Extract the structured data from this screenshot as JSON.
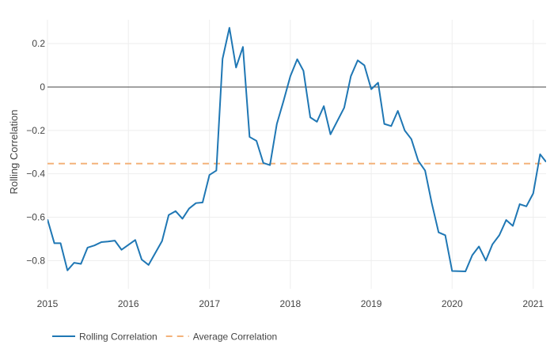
{
  "chart_data": {
    "type": "line",
    "ylabel": "Rolling Correlation",
    "xlabel": "",
    "title": "",
    "xlim": [
      "2015-01-01",
      "2021-02-28"
    ],
    "ylim": [
      -0.93,
      0.31
    ],
    "x_ticks": [
      "2015",
      "2016",
      "2017",
      "2018",
      "2019",
      "2020",
      "2021"
    ],
    "y_ticks": [
      -0.8,
      -0.6,
      -0.4,
      -0.2,
      0,
      0.2
    ],
    "y_tick_labels": [
      "−0.8",
      "−0.6",
      "−0.4",
      "−0.2",
      "0",
      "0.2"
    ],
    "grid": true,
    "zero_line": true,
    "legend_position": "bottom-left",
    "series": [
      {
        "name": "Rolling Correlation",
        "style": "solid",
        "color": "#1f77b4",
        "points": [
          [
            "2015-01-01",
            -0.61
          ],
          [
            "2015-02-01",
            -0.72
          ],
          [
            "2015-03-01",
            -0.72
          ],
          [
            "2015-04-01",
            -0.845
          ],
          [
            "2015-05-01",
            -0.81
          ],
          [
            "2015-06-01",
            -0.815
          ],
          [
            "2015-07-01",
            -0.74
          ],
          [
            "2015-08-01",
            -0.73
          ],
          [
            "2015-09-01",
            -0.715
          ],
          [
            "2015-10-01",
            -0.712
          ],
          [
            "2015-11-01",
            -0.708
          ],
          [
            "2015-12-01",
            -0.75
          ],
          [
            "2016-02-01",
            -0.705
          ],
          [
            "2016-03-01",
            -0.795
          ],
          [
            "2016-04-01",
            -0.82
          ],
          [
            "2016-06-01",
            -0.71
          ],
          [
            "2016-07-01",
            -0.59
          ],
          [
            "2016-08-01",
            -0.572
          ],
          [
            "2016-09-01",
            -0.607
          ],
          [
            "2016-10-01",
            -0.56
          ],
          [
            "2016-11-01",
            -0.535
          ],
          [
            "2016-12-01",
            -0.532
          ],
          [
            "2017-01-01",
            -0.405
          ],
          [
            "2017-02-01",
            -0.385
          ],
          [
            "2017-03-01",
            0.13
          ],
          [
            "2017-04-01",
            0.273
          ],
          [
            "2017-05-01",
            0.09
          ],
          [
            "2017-06-01",
            0.185
          ],
          [
            "2017-07-01",
            -0.23
          ],
          [
            "2017-08-01",
            -0.248
          ],
          [
            "2017-09-01",
            -0.35
          ],
          [
            "2017-10-01",
            -0.36
          ],
          [
            "2017-11-01",
            -0.17
          ],
          [
            "2017-12-01",
            -0.065
          ],
          [
            "2018-01-01",
            0.05
          ],
          [
            "2018-02-01",
            0.128
          ],
          [
            "2018-03-01",
            0.075
          ],
          [
            "2018-04-01",
            -0.14
          ],
          [
            "2018-05-01",
            -0.16
          ],
          [
            "2018-06-01",
            -0.088
          ],
          [
            "2018-07-01",
            -0.218
          ],
          [
            "2018-09-01",
            -0.095
          ],
          [
            "2018-10-01",
            0.05
          ],
          [
            "2018-11-01",
            0.123
          ],
          [
            "2018-12-01",
            0.1
          ],
          [
            "2019-01-01",
            -0.01
          ],
          [
            "2019-02-01",
            0.02
          ],
          [
            "2019-03-01",
            -0.17
          ],
          [
            "2019-04-01",
            -0.18
          ],
          [
            "2019-05-01",
            -0.11
          ],
          [
            "2019-06-01",
            -0.2
          ],
          [
            "2019-07-01",
            -0.24
          ],
          [
            "2019-08-01",
            -0.34
          ],
          [
            "2019-09-01",
            -0.385
          ],
          [
            "2019-10-01",
            -0.535
          ],
          [
            "2019-11-01",
            -0.67
          ],
          [
            "2019-12-01",
            -0.683
          ],
          [
            "2020-01-01",
            -0.848
          ],
          [
            "2020-03-01",
            -0.85
          ],
          [
            "2020-04-01",
            -0.775
          ],
          [
            "2020-05-01",
            -0.735
          ],
          [
            "2020-06-01",
            -0.8
          ],
          [
            "2020-07-01",
            -0.725
          ],
          [
            "2020-08-01",
            -0.683
          ],
          [
            "2020-09-01",
            -0.613
          ],
          [
            "2020-10-01",
            -0.64
          ],
          [
            "2020-11-01",
            -0.54
          ],
          [
            "2020-12-01",
            -0.55
          ],
          [
            "2021-01-01",
            -0.49
          ],
          [
            "2021-02-01",
            -0.31
          ],
          [
            "2021-02-28",
            -0.345
          ]
        ]
      },
      {
        "name": "Average Correlation",
        "style": "dashed",
        "color": "#f4b27a",
        "points": [
          [
            "2015-01-01",
            -0.353
          ],
          [
            "2021-02-28",
            -0.353
          ]
        ]
      }
    ]
  }
}
